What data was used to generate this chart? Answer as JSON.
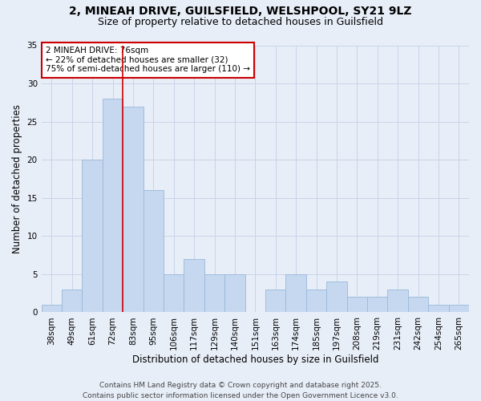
{
  "title_line1": "2, MINEAH DRIVE, GUILSFIELD, WELSHPOOL, SY21 9LZ",
  "title_line2": "Size of property relative to detached houses in Guilsfield",
  "xlabel": "Distribution of detached houses by size in Guilsfield",
  "ylabel": "Number of detached properties",
  "categories": [
    "38sqm",
    "49sqm",
    "61sqm",
    "72sqm",
    "83sqm",
    "95sqm",
    "106sqm",
    "117sqm",
    "129sqm",
    "140sqm",
    "151sqm",
    "163sqm",
    "174sqm",
    "185sqm",
    "197sqm",
    "208sqm",
    "219sqm",
    "231sqm",
    "242sqm",
    "254sqm",
    "265sqm"
  ],
  "values": [
    1,
    3,
    20,
    28,
    27,
    16,
    5,
    7,
    5,
    5,
    0,
    3,
    5,
    3,
    4,
    2,
    2,
    3,
    2,
    1,
    1
  ],
  "bar_color": "#c5d8f0",
  "bar_edge_color": "#9ab8d8",
  "vline_x": 4.0,
  "annotation_title": "2 MINEAH DRIVE: 76sqm",
  "annotation_line1": "← 22% of detached houses are smaller (32)",
  "annotation_line2": "75% of semi-detached houses are larger (110) →",
  "annotation_box_color": "#ffffff",
  "annotation_box_edge": "#cc0000",
  "vline_color": "#cc0000",
  "grid_color": "#c8d4e8",
  "background_color": "#e8eef8",
  "ylim": [
    0,
    35
  ],
  "yticks": [
    0,
    5,
    10,
    15,
    20,
    25,
    30,
    35
  ],
  "footer_line1": "Contains HM Land Registry data © Crown copyright and database right 2025.",
  "footer_line2": "Contains public sector information licensed under the Open Government Licence v3.0.",
  "title_fontsize": 10,
  "subtitle_fontsize": 9,
  "label_fontsize": 8.5,
  "tick_fontsize": 7.5,
  "annotation_fontsize": 7.5,
  "footer_fontsize": 6.5
}
